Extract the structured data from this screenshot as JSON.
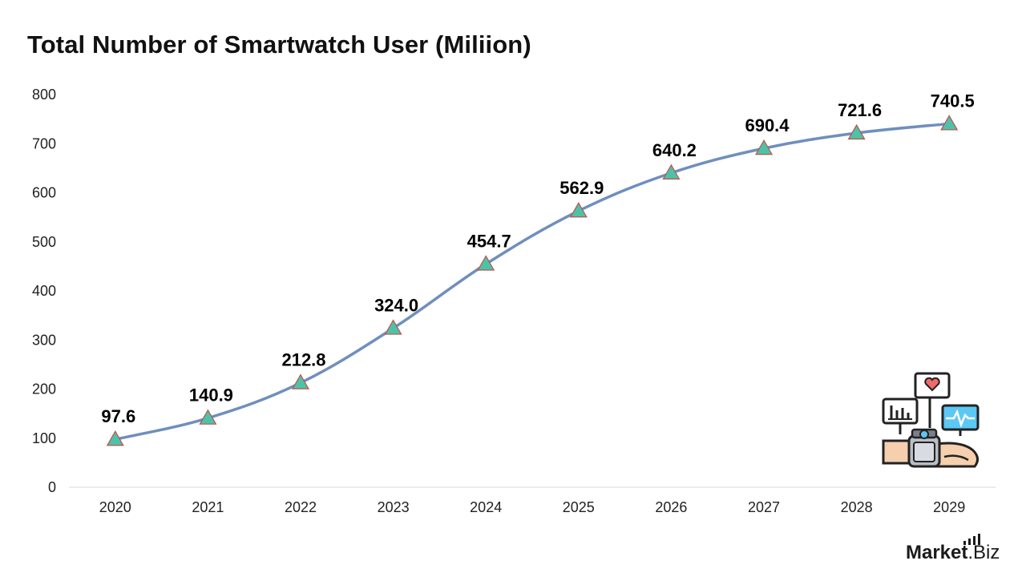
{
  "chart_data": {
    "type": "line",
    "title": "Total Number of Smartwatch User (Miliion)",
    "categories": [
      "2020",
      "2021",
      "2022",
      "2023",
      "2024",
      "2025",
      "2026",
      "2027",
      "2028",
      "2029"
    ],
    "values": [
      97.6,
      140.9,
      212.8,
      324.0,
      454.7,
      562.9,
      640.2,
      690.4,
      721.6,
      740.5
    ],
    "data_labels": [
      "97.6",
      "140.9",
      "212.8",
      "324.0",
      "454.7",
      "562.9",
      "640.2",
      "690.4",
      "721.6",
      "740.5"
    ],
    "yticks": [
      0,
      100,
      200,
      300,
      400,
      500,
      600,
      700,
      800
    ],
    "ylim": [
      0,
      800
    ],
    "xlabel": "",
    "ylabel": "",
    "grid": false,
    "legend": "none",
    "marker": "triangle",
    "line_color": "#6f8fbd",
    "marker_color": "#4cc3a8",
    "marker_edge": "#c0504d"
  },
  "brand": {
    "name": "Market",
    "suffix": ".Biz"
  },
  "illustration_icon": "smartwatch-health-monitor-icon"
}
